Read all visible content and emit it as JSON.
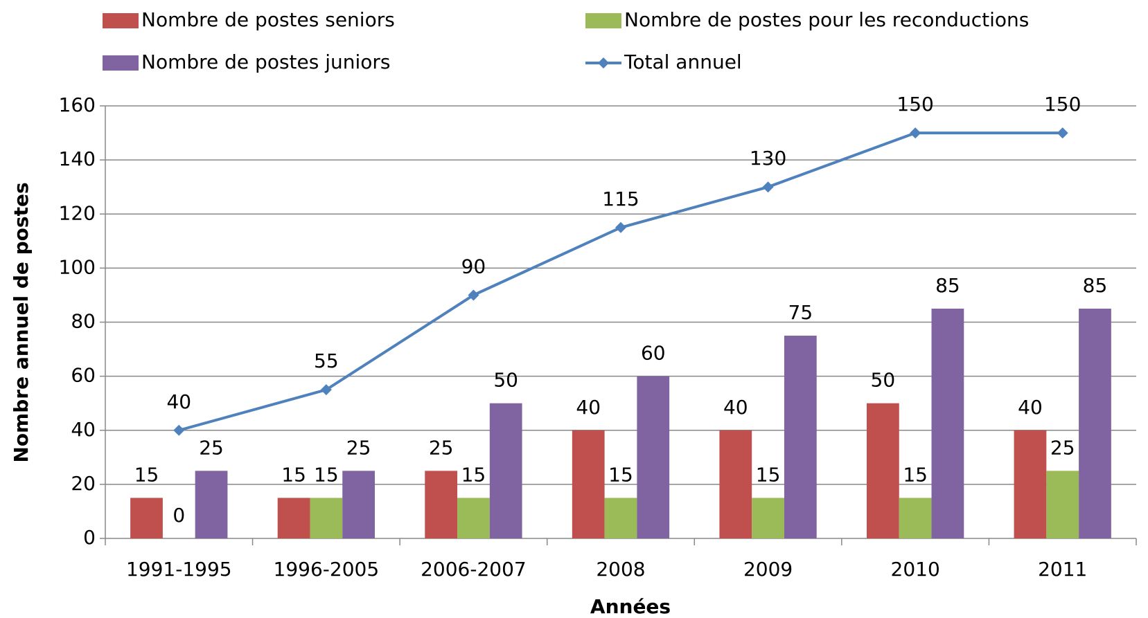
{
  "chart_data": {
    "type": "bar",
    "x_label": "Années",
    "y_label": "Nombre annuel de postes",
    "categories": [
      "1991-1995",
      "1996-2005",
      "2006-2007",
      "2008",
      "2009",
      "2010",
      "2011"
    ],
    "series": [
      {
        "name": "Nombre de postes seniors",
        "color": "#c0504d",
        "values": [
          15,
          15,
          25,
          40,
          40,
          50,
          40
        ]
      },
      {
        "name": "Nombre de postes pour les reconductions",
        "color": "#9bbb59",
        "values": [
          0,
          15,
          15,
          15,
          15,
          15,
          25
        ]
      },
      {
        "name": "Nombre de postes juniors",
        "color": "#8064a2",
        "values": [
          25,
          25,
          50,
          60,
          75,
          85,
          85
        ]
      },
      {
        "name": "Total annuel",
        "color": "#4f81bd",
        "type": "line",
        "values": [
          40,
          55,
          90,
          115,
          130,
          150,
          150
        ]
      }
    ],
    "ylim": [
      0,
      160
    ],
    "yticks": [
      0,
      20,
      40,
      60,
      80,
      100,
      120,
      140,
      160
    ],
    "grid": true
  }
}
